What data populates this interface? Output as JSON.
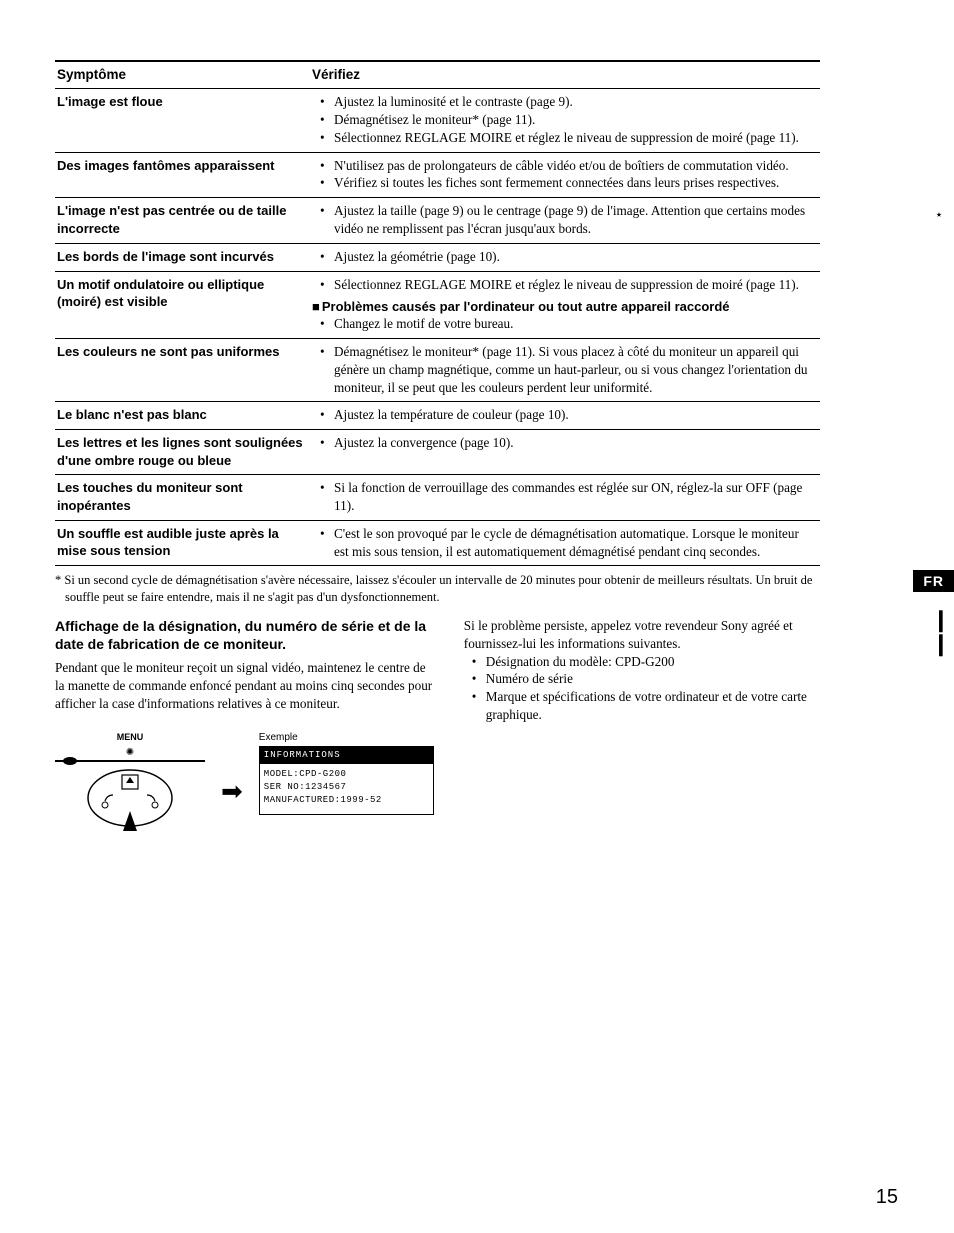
{
  "table": {
    "headers": {
      "col1": "Symptôme",
      "col2": "Vérifiez"
    },
    "rows": [
      {
        "symptom": "L'image est floue",
        "items": [
          "Ajustez la luminosité et le contraste (page 9).",
          "Démagnétisez le moniteur* (page 11).",
          "Sélectionnez REGLAGE MOIRE et réglez le niveau de suppression de moiré (page 11)."
        ]
      },
      {
        "symptom": "Des images fantômes apparaissent",
        "items": [
          "N'utilisez pas de prolongateurs de câble vidéo et/ou de boîtiers de commutation vidéo.",
          "Vérifiez si toutes les fiches sont fermement connectées dans leurs prises respectives."
        ]
      },
      {
        "symptom": "L'image n'est pas centrée ou de taille incorrecte",
        "items": [
          "Ajustez la taille (page 9) ou le centrage (page 9) de l'image. Attention que certains modes vidéo ne remplissent pas l'écran jusqu'aux bords."
        ]
      },
      {
        "symptom": "Les bords de l'image sont incurvés",
        "items": [
          "Ajustez la géométrie (page 10)."
        ]
      },
      {
        "symptom": "Un motif ondulatoire ou elliptique (moiré) est visible",
        "items": [
          "Sélectionnez REGLAGE MOIRE et réglez le niveau de suppression de moiré (page 11)."
        ],
        "subheading": "Problèmes causés par l'ordinateur ou tout autre appareil raccordé",
        "subitems": [
          "Changez le motif de votre bureau."
        ]
      },
      {
        "symptom": "Les couleurs ne sont pas uniformes",
        "items": [
          "Démagnétisez le moniteur* (page 11). Si vous placez à côté du moniteur un appareil qui génère un champ magnétique, comme un haut-parleur, ou si vous changez l'orientation du moniteur, il se peut que les couleurs perdent leur uniformité."
        ]
      },
      {
        "symptom": "Le blanc n'est pas blanc",
        "items": [
          "Ajustez la température de couleur (page 10)."
        ]
      },
      {
        "symptom": "Les lettres et les lignes sont soulignées d'une ombre rouge ou bleue",
        "items": [
          "Ajustez la convergence (page 10)."
        ]
      },
      {
        "symptom": "Les touches du moniteur sont inopérantes",
        "items": [
          "Si la fonction de verrouillage des commandes est réglée sur ON, réglez-la sur OFF (page 11)."
        ]
      },
      {
        "symptom": "Un souffle est audible juste après la mise sous tension",
        "items": [
          "C'est le son provoqué par le cycle de démagnétisation automatique. Lorsque le moniteur est mis sous tension, il est automatiquement démagnétisé pendant cinq secondes."
        ]
      }
    ]
  },
  "footnote": "* Si un second cycle de démagnétisation s'avère nécessaire, laissez s'écouler un intervalle de 20 minutes pour obtenir de meilleurs résultats. Un bruit de souffle peut se faire entendre, mais il ne s'agit pas d'un dysfonctionnement.",
  "left_col": {
    "heading": "Affichage de la désignation, du numéro de série et de la date de fabrication de ce moniteur.",
    "body": "Pendant que le moniteur reçoit un signal vidéo, maintenez le centre de la manette de commande enfoncé pendant au moins cinq secondes pour afficher la case d'informations relatives à ce moniteur.",
    "menu_label": "MENU",
    "example_label": "Exemple",
    "osd_header": "INFORMATIONS",
    "osd_line1": "MODEL:CPD-G200",
    "osd_line2": "SER NO:1234567",
    "osd_line3": "MANUFACTURED:1999-52"
  },
  "right_col": {
    "p1": "Si le problème persiste, appelez votre revendeur Sony agréé et fournissez-lui les informations suivantes.",
    "items": [
      "Désignation du modèle: CPD-G200",
      "Numéro de série",
      "Marque et spécifications de votre ordinateur et de votre carte graphique."
    ]
  },
  "lang_tab": "FR",
  "page_number": "15"
}
